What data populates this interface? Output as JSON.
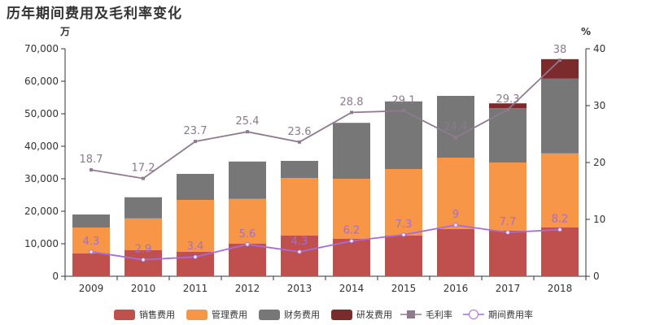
{
  "chart_data": {
    "type": "bar",
    "title": "历年期间费用及毛利率变化",
    "categories": [
      "2009",
      "2010",
      "2011",
      "2012",
      "2013",
      "2014",
      "2015",
      "2016",
      "2017",
      "2018"
    ],
    "left_axis": {
      "unit": "万",
      "range": [
        0,
        70000
      ],
      "ticks": [
        "0",
        "10,000",
        "20,000",
        "30,000",
        "40,000",
        "50,000",
        "60,000",
        "70,000"
      ]
    },
    "right_axis": {
      "unit": "%",
      "range": [
        0,
        40
      ],
      "ticks": [
        "0",
        "10",
        "20",
        "30",
        "40"
      ]
    },
    "stack_series": [
      {
        "name": "销售费用",
        "color": "#c0504d",
        "values": [
          7000,
          8000,
          7500,
          10000,
          12500,
          11500,
          12500,
          14500,
          14000,
          15000
        ]
      },
      {
        "name": "管理费用",
        "color": "#f79646",
        "values": [
          8000,
          9800,
          16000,
          13800,
          17700,
          18500,
          20500,
          22000,
          21000,
          22800
        ]
      },
      {
        "name": "财务费用",
        "color": "#777777",
        "values": [
          4000,
          6500,
          8000,
          11500,
          5300,
          17200,
          20800,
          19000,
          16700,
          23000
        ]
      },
      {
        "name": "研发费用",
        "color": "#7b2b2c",
        "values": [
          0,
          0,
          0,
          0,
          0,
          0,
          0,
          0,
          1500,
          6000
        ]
      }
    ],
    "line_series": [
      {
        "name": "毛利率",
        "color": "#8e7b8e",
        "label_color": "#8a7a8a",
        "marker": "square",
        "values": [
          18.7,
          17.2,
          23.7,
          25.4,
          23.6,
          28.8,
          29.1,
          24.4,
          29.3,
          38
        ],
        "labels": [
          "18.7",
          "17.2",
          "23.7",
          "25.4",
          "23.6",
          "28.8",
          "29.1",
          "24.4",
          "29.3",
          "38"
        ]
      },
      {
        "name": "期间费用率",
        "color": "#a46cdc",
        "label_color": "#a46cdc",
        "marker": "circle",
        "values": [
          4.3,
          2.9,
          3.4,
          5.6,
          4.3,
          6.2,
          7.3,
          9,
          7.7,
          8.2
        ],
        "labels": [
          "4.3",
          "2.9",
          "3.4",
          "5.6",
          "4.3",
          "6.2",
          "7.3",
          "9",
          "7.7",
          "8.2"
        ]
      }
    ],
    "grid": false,
    "legend_position": "bottom"
  }
}
